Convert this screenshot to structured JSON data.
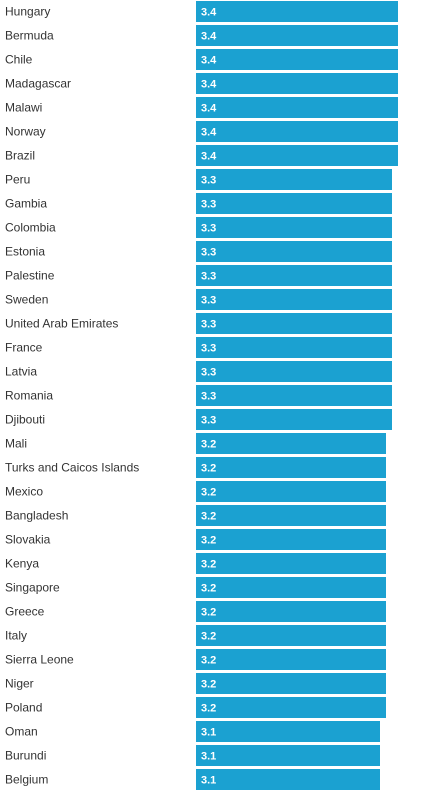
{
  "chart_data": {
    "type": "bar",
    "orientation": "horizontal",
    "title": "",
    "xlabel": "",
    "ylabel": "",
    "bar_color": "#1ba1d1",
    "label_color": "#333333",
    "value_label_color": "#ffffff",
    "grid": false,
    "legend": "none",
    "xlim": [
      0,
      3.4
    ],
    "categories": [
      "Hungary",
      "Bermuda",
      "Chile",
      "Madagascar",
      "Malawi",
      "Norway",
      "Brazil",
      "Peru",
      "Gambia",
      "Colombia",
      "Estonia",
      "Palestine",
      "Sweden",
      "United Arab Emirates",
      "France",
      "Latvia",
      "Romania",
      "Djibouti",
      "Mali",
      "Turks and Caicos Islands",
      "Mexico",
      "Bangladesh",
      "Slovakia",
      "Kenya",
      "Singapore",
      "Greece",
      "Italy",
      "Sierra Leone",
      "Niger",
      "Poland",
      "Oman",
      "Burundi",
      "Belgium"
    ],
    "values": [
      3.4,
      3.4,
      3.4,
      3.4,
      3.4,
      3.4,
      3.4,
      3.3,
      3.3,
      3.3,
      3.3,
      3.3,
      3.3,
      3.3,
      3.3,
      3.3,
      3.3,
      3.3,
      3.2,
      3.2,
      3.2,
      3.2,
      3.2,
      3.2,
      3.2,
      3.2,
      3.2,
      3.2,
      3.2,
      3.2,
      3.1,
      3.1,
      3.1
    ],
    "value_labels": [
      "3.4",
      "3.4",
      "3.4",
      "3.4",
      "3.4",
      "3.4",
      "3.4",
      "3.3",
      "3.3",
      "3.3",
      "3.3",
      "3.3",
      "3.3",
      "3.3",
      "3.3",
      "3.3",
      "3.3",
      "3.3",
      "3.2",
      "3.2",
      "3.2",
      "3.2",
      "3.2",
      "3.2",
      "3.2",
      "3.2",
      "3.2",
      "3.2",
      "3.2",
      "3.2",
      "3.1",
      "3.1",
      "3.1"
    ]
  }
}
